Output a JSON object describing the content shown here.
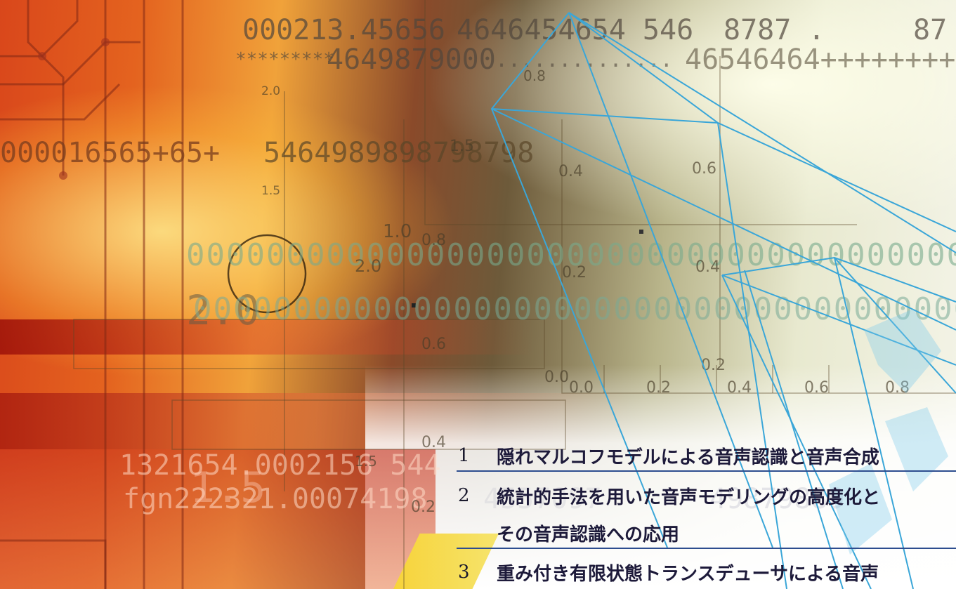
{
  "background_strings": {
    "l1": "000213.45656",
    "l1b": "4646454654 546",
    "l1c": "8787 .",
    "l1d": "87",
    "l2a": "*********",
    "l2b": "4649879000",
    "l2c": "..............",
    "l2d": "46546464++++++++",
    "l3a": "000016565+65+",
    "l3b": "5464989898798798",
    "l4": "0000000000000000000000000000000000000000000000000000",
    "l5": "2.0",
    "l6": "000000000000000000000000000000000000000000000000000",
    "l7": "1321654.0002156 544",
    "l8": "fgn222321.00074198",
    "l8b": "4557097",
    "l8c": "49879889",
    "l9": "1.5"
  },
  "axis_ticks": [
    "2.0",
    "1.5",
    "1.0",
    "2.0",
    "0.8",
    "0.6",
    "0.4",
    "0.2",
    "0.0",
    "0.0",
    "0.2",
    "0.4",
    "0.6",
    "0.8",
    "0.4",
    "0.6",
    "0.2",
    "1.5",
    "0.4",
    "0.2",
    "0.8",
    "1.5",
    "0.6",
    "0.4",
    "0.2"
  ],
  "toc": [
    {
      "number": "1",
      "title": "隠れマルコフモデルによる音声認識と音声合成"
    },
    {
      "number": "2",
      "title": "統計的手法を用いた音声モデリングの高度化と"
    },
    {
      "number": "",
      "title": "その音声認識への応用"
    },
    {
      "number": "3",
      "title": "重み付き有限状態トランスデューサによる音声"
    }
  ],
  "colors": {
    "rule_blue": "#2d4d8f",
    "wire_blue": "#3aa6d8",
    "orange": "#e4631f"
  }
}
